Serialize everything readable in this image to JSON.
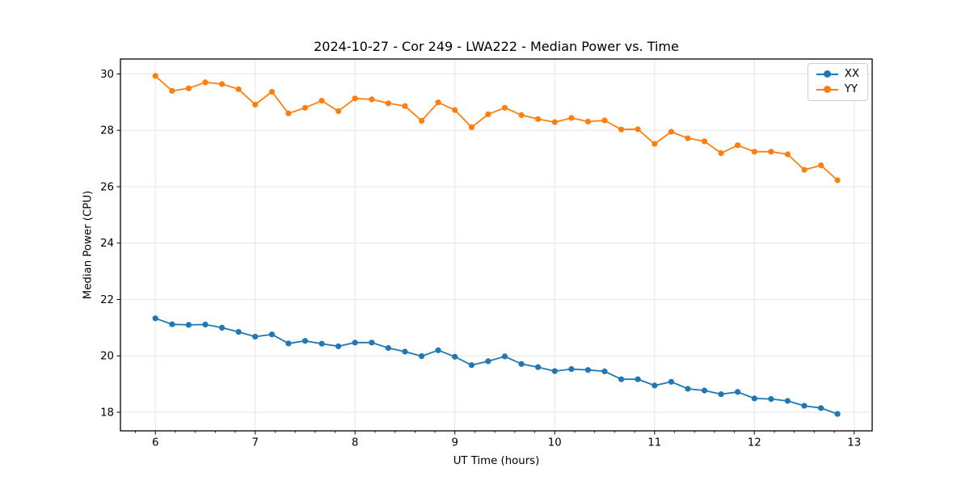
{
  "chart_data": {
    "type": "line",
    "title": "2024-10-27 - Cor 249 - LWA222 - Median Power vs. Time",
    "xlabel": "UT Time (hours)",
    "ylabel": "Median Power (CPU)",
    "xlim": [
      5.65,
      13.18
    ],
    "ylim": [
      17.34,
      30.53
    ],
    "xticks": [
      6,
      7,
      8,
      9,
      10,
      11,
      12,
      13
    ],
    "yticks": [
      18,
      20,
      22,
      24,
      26,
      28,
      30
    ],
    "x_minor_tick_step": 0.2,
    "grid": true,
    "grid_color": "#e6e6e6",
    "frame_color": "#000000",
    "legend_position": "upper right",
    "x": [
      6.0,
      6.167,
      6.333,
      6.5,
      6.667,
      6.833,
      7.0,
      7.167,
      7.333,
      7.5,
      7.667,
      7.833,
      8.0,
      8.167,
      8.333,
      8.5,
      8.667,
      8.833,
      9.0,
      9.167,
      9.333,
      9.5,
      9.667,
      9.833,
      10.0,
      10.167,
      10.333,
      10.5,
      10.667,
      10.833,
      11.0,
      11.167,
      11.333,
      11.5,
      11.667,
      11.833,
      12.0,
      12.167,
      12.333,
      12.5,
      12.667,
      12.833
    ],
    "series": [
      {
        "name": "XX",
        "color": "#1f77b4",
        "values": [
          21.33,
          21.12,
          21.1,
          21.11,
          21.0,
          20.85,
          20.68,
          20.76,
          20.44,
          20.53,
          20.43,
          20.34,
          20.47,
          20.47,
          20.28,
          20.15,
          19.99,
          20.2,
          19.97,
          19.67,
          19.81,
          19.98,
          19.71,
          19.6,
          19.46,
          19.53,
          19.5,
          19.45,
          19.17,
          19.17,
          18.95,
          19.08,
          18.83,
          18.77,
          18.64,
          18.72,
          18.49,
          18.47,
          18.4,
          18.23,
          18.15,
          17.94
        ]
      },
      {
        "name": "YY",
        "color": "#ff7f0e",
        "values": [
          29.93,
          29.4,
          29.49,
          29.7,
          29.64,
          29.46,
          28.91,
          29.37,
          28.6,
          28.8,
          29.05,
          28.68,
          29.13,
          29.1,
          28.96,
          28.86,
          28.34,
          28.99,
          28.72,
          28.11,
          28.57,
          28.8,
          28.54,
          28.4,
          28.29,
          28.44,
          28.31,
          28.35,
          28.03,
          28.04,
          27.52,
          27.95,
          27.72,
          27.61,
          27.19,
          27.47,
          27.24,
          27.24,
          27.15,
          26.6,
          26.76,
          26.23
        ]
      }
    ]
  }
}
